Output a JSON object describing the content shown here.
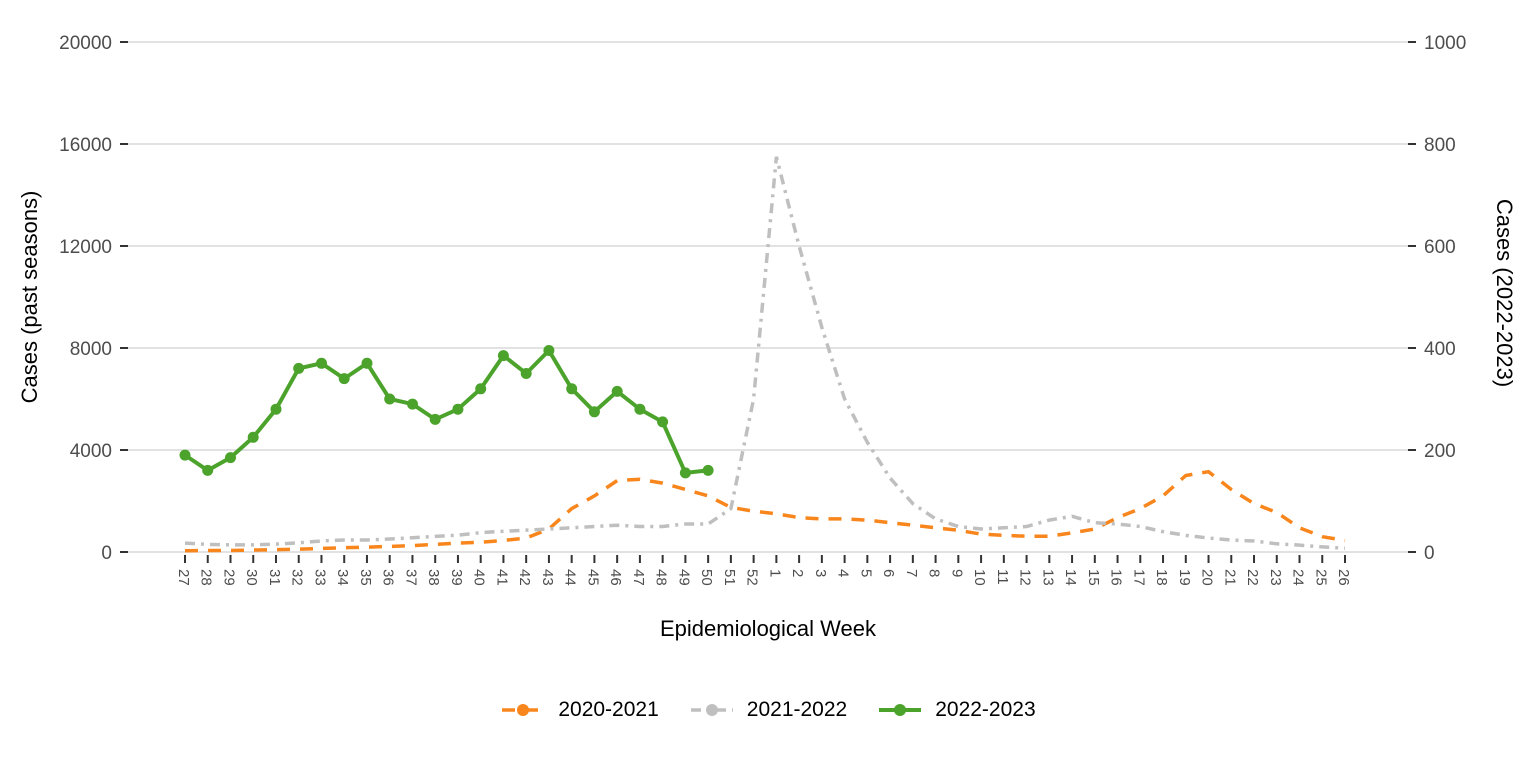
{
  "chart_data": {
    "type": "line",
    "x_label": "Epidemiological Week",
    "x_categories": [
      "27",
      "28",
      "29",
      "30",
      "31",
      "32",
      "33",
      "34",
      "35",
      "36",
      "37",
      "38",
      "39",
      "40",
      "41",
      "42",
      "43",
      "44",
      "45",
      "46",
      "47",
      "48",
      "49",
      "50",
      "51",
      "52",
      "1",
      "2",
      "3",
      "4",
      "5",
      "6",
      "7",
      "8",
      "9",
      "10",
      "11",
      "12",
      "13",
      "14",
      "15",
      "16",
      "17",
      "18",
      "19",
      "20",
      "21",
      "22",
      "23",
      "24",
      "25",
      "26"
    ],
    "y_left": {
      "label": "Cases (past seasons)",
      "ticks": [
        0,
        4000,
        8000,
        12000,
        16000,
        20000
      ],
      "range": [
        0,
        20000
      ]
    },
    "y_right": {
      "label": "Cases (2022-2023)",
      "ticks": [
        0,
        200,
        400,
        600,
        800,
        1000
      ],
      "range": [
        0,
        1000
      ]
    },
    "grid": "horizontal-only",
    "legend_position": "bottom-center",
    "series": [
      {
        "name": "2020-2021",
        "axis": "left",
        "color": "#F8861D",
        "style": "dashed",
        "markers": false,
        "start_index": 0,
        "values": [
          50,
          60,
          60,
          80,
          90,
          110,
          140,
          170,
          190,
          220,
          250,
          300,
          350,
          380,
          450,
          550,
          900,
          1700,
          2200,
          2800,
          2850,
          2700,
          2450,
          2200,
          1750,
          1600,
          1500,
          1350,
          1300,
          1300,
          1250,
          1150,
          1050,
          950,
          850,
          700,
          650,
          620,
          620,
          750,
          900,
          1350,
          1700,
          2200,
          3000,
          3150,
          2450,
          1900,
          1550,
          950,
          600,
          450
        ]
      },
      {
        "name": "2021-2022",
        "axis": "left",
        "color": "#BFBFBF",
        "style": "dashdot",
        "markers": false,
        "start_index": 0,
        "values": [
          350,
          300,
          280,
          280,
          310,
          360,
          430,
          470,
          470,
          510,
          560,
          610,
          660,
          760,
          810,
          860,
          900,
          950,
          1000,
          1050,
          1000,
          1000,
          1100,
          1100,
          1700,
          6000,
          15500,
          12000,
          8800,
          6000,
          4300,
          2900,
          1900,
          1300,
          1000,
          900,
          950,
          1000,
          1250,
          1400,
          1150,
          1100,
          1000,
          800,
          650,
          550,
          470,
          430,
          320,
          270,
          200,
          150
        ]
      },
      {
        "name": "2022-2023",
        "axis": "right",
        "color": "#4CA32C",
        "style": "solid",
        "markers": true,
        "start_index": 0,
        "values": [
          190,
          160,
          185,
          225,
          280,
          360,
          370,
          340,
          370,
          300,
          290,
          260,
          280,
          320,
          385,
          350,
          395,
          320,
          275,
          315,
          280,
          255,
          155,
          160
        ]
      }
    ],
    "colors": {
      "gridline": "#D9D9D9",
      "tick_mark": "#333333",
      "tick_label": "#4D4D4D",
      "axis_title": "#000000",
      "background": "#FFFFFF"
    }
  }
}
